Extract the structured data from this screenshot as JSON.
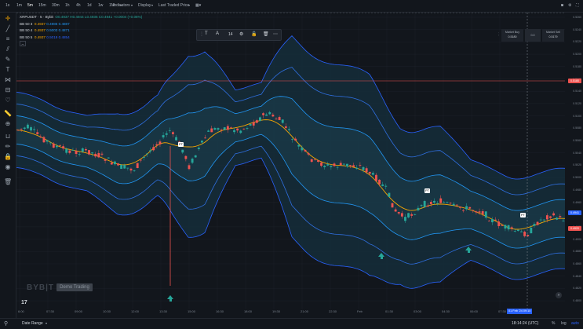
{
  "timeframes": [
    "1s",
    "1m",
    "5m",
    "15m",
    "30m",
    "1h",
    "4h",
    "1d",
    "1w",
    "1M"
  ],
  "active_timeframe": "5m",
  "toolbar_menus": {
    "indicators": "Indicators",
    "display": "Display",
    "price_type": "Last Traded Price"
  },
  "legend": {
    "symbol": "XRPUSDT · 5 · Bybit",
    "ohlc": "O0.4937 H0.4944 L0.4936 C0.4941 +0.0004 (+0.08%)",
    "bb": [
      {
        "name": "BB 50 3",
        "v1": "0.4937",
        "v2": "0.4986",
        "v3": "0.4887",
        "color": "#f7a600"
      },
      {
        "name": "BB 50 4",
        "v1": "0.4937",
        "v2": "0.5003",
        "v3": "0.4871",
        "color": "#2196f3"
      },
      {
        "name": "BB 50 5",
        "v1": "0.4937",
        "v2": "0.5019",
        "v3": "0.4854",
        "color": "#2962ff"
      }
    ]
  },
  "drawing_toolbar": {
    "size": "14"
  },
  "trade": {
    "sell_label": "Market Buy",
    "sell_price": "0.5180",
    "spread": "0.0",
    "buy_label": "Market Sell",
    "buy_price": "0.5179"
  },
  "price_axis": {
    "ticks": [
      "0.5260",
      "0.5240",
      "0.5220",
      "0.5200",
      "0.5180",
      "0.5160",
      "0.5140",
      "0.5120",
      "0.5100",
      "0.5080",
      "0.5060",
      "0.5040",
      "0.5020",
      "0.5000",
      "0.4980",
      "0.4960",
      "0.4940",
      "0.4920",
      "0.4900",
      "0.4880",
      "0.4860",
      "0.4840",
      "0.4820",
      "0.4800"
    ],
    "crosshair_price": "0.5180",
    "last_price": "0.4941",
    "bb_low_label": "0.4920"
  },
  "time_axis": {
    "ticks": [
      "6:00",
      "07:30",
      "09:00",
      "10:30",
      "12:00",
      "13:30",
      "15:00",
      "16:30",
      "18:00",
      "19:30",
      "21:00",
      "22:30",
      "Feb",
      "01:30",
      "03:00",
      "04:30",
      "06:00",
      "07:30"
    ],
    "crosshair_time": "01 Feb '24  09:10"
  },
  "markers": {
    "pt": "PT"
  },
  "watermark": {
    "brand": "BYB|T",
    "demo": "Demo Trading"
  },
  "bottom": {
    "date_range": "Date Range",
    "clock": "18:14:24 (UTC)",
    "percent": "%",
    "log": "log",
    "auto": "auto"
  },
  "colors": {
    "bg": "#12161c",
    "bull": "#26a69a",
    "bear": "#ef5350",
    "ma": "#f7a600",
    "band": "#2962ff",
    "band_fill": "#1b3a4b",
    "crosshair_line": "#ef5350"
  }
}
